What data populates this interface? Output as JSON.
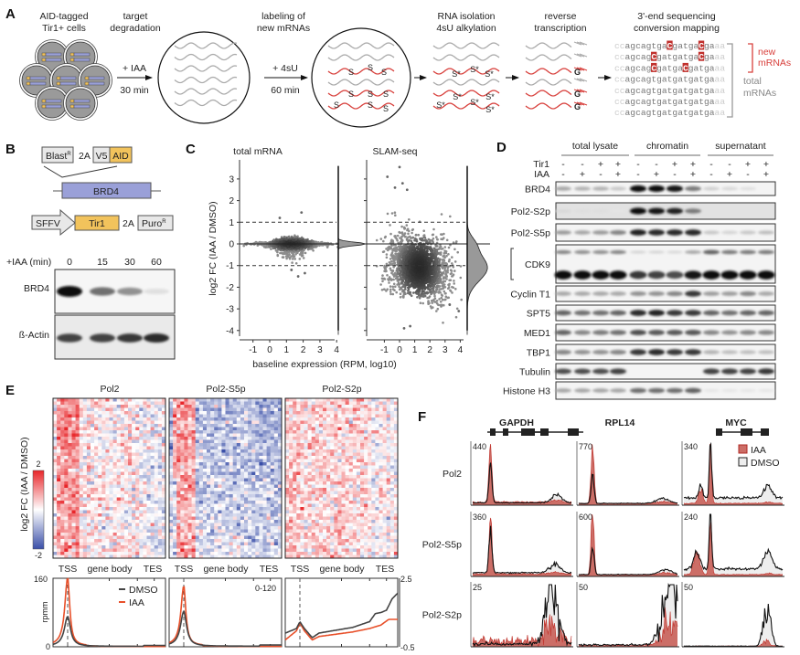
{
  "panel_labels": {
    "a": "A",
    "b": "B",
    "c": "C",
    "d": "D",
    "e": "E",
    "f": "F"
  },
  "a": {
    "step1": [
      "AID-tagged",
      "Tir1+ cells"
    ],
    "step2": [
      "target",
      "degradation"
    ],
    "arrow1": [
      "+ IAA",
      "30 min"
    ],
    "step3": [
      "labeling of",
      "new mRNAs"
    ],
    "arrow2": [
      "+ 4sU",
      "60 min"
    ],
    "step4": [
      "RNA isolation",
      "4sU alkylation"
    ],
    "step5": [
      "reverse",
      "transcription"
    ],
    "step6": [
      "3'-end sequencing",
      "conversion mapping"
    ],
    "thiol_label": "S",
    "alkylated_label": "S*",
    "g_label": "G",
    "sequences": [
      {
        "seq": "ccagcagtgaCgatgaCgaaa",
        "conversions": [
          10,
          16
        ]
      },
      {
        "seq": "ccagcagCgatgatgaCgaaa",
        "conversions": [
          7,
          16
        ]
      },
      {
        "seq": "ccagcagCgatgaCgatgaaa",
        "conversions": [
          7,
          13
        ]
      },
      {
        "seq": "ccagcagtgatgatgatgaaa",
        "conversions": []
      },
      {
        "seq": "ccagcagtgatgatgatgaaa",
        "conversions": []
      },
      {
        "seq": "ccagcagtgatgatgatgaaa",
        "conversions": []
      },
      {
        "seq": "ccagcagtgatgatgatgaaa",
        "conversions": []
      }
    ],
    "new_label": [
      "new",
      "mRNAs"
    ],
    "total_label": [
      "total",
      "mRNAs"
    ],
    "colors": {
      "new": "#d8403c",
      "total": "#999999",
      "aid": "#f2c35c",
      "brd4": "#9aa0d8"
    }
  },
  "b": {
    "construct1": {
      "blast": "Blast",
      "blast_sup": "R",
      "t2a": "2A",
      "v5": "V5",
      "aid": "AID"
    },
    "gene": "BRD4",
    "construct2": {
      "promoter": "SFFV",
      "tir1": "Tir1",
      "t2a": "2A",
      "puro": "Puro",
      "puro_sup": "R"
    },
    "blot": {
      "time_label": "+IAA (min)",
      "times": [
        "0",
        "15",
        "30",
        "60"
      ],
      "rows": [
        {
          "label": "BRD4",
          "intensity": [
            1.0,
            0.55,
            0.4,
            0.05
          ]
        },
        {
          "label": "ß-Actin",
          "intensity": [
            0.75,
            0.75,
            0.8,
            0.85
          ]
        }
      ]
    }
  },
  "chart_data": [
    {
      "panel": "C",
      "type": "scatter",
      "titles": [
        "total mRNA",
        "SLAM-seq"
      ],
      "xlabel": "baseline expression (RPM, log10)",
      "ylabel": "log2 FC (IAA / DMSO)",
      "xticks": [
        "-1",
        "0",
        "1",
        "2",
        "3",
        "4"
      ],
      "yticks": [
        "3",
        "2",
        "1",
        "0",
        "-1",
        "-2",
        "-3",
        "-4"
      ],
      "xlim": [
        -1.8,
        4.4
      ],
      "ylim": [
        -4.2,
        3.8
      ],
      "reference_lines": {
        "solid": [
          0
        ],
        "dashed": [
          1,
          -1
        ]
      },
      "series": [
        {
          "distribution": {
            "y_mode": 0.0,
            "y_spread": 0.08
          },
          "outliers": [
            [
              0.6,
              1.2
            ],
            [
              1.9,
              1.45
            ],
            [
              1.7,
              -1.5
            ],
            [
              2.1,
              -1.35
            ],
            [
              1.3,
              -1.2
            ]
          ]
        },
        {
          "distribution": {
            "y_mode": -1.1,
            "y_spread": 0.6
          },
          "outliers": [
            [
              0.0,
              3.55
            ],
            [
              -0.8,
              3.1
            ],
            [
              -0.3,
              2.6
            ],
            [
              0.2,
              2.8
            ],
            [
              0.5,
              2.5
            ],
            [
              3.3,
              -2.8
            ],
            [
              3.9,
              -3.1
            ],
            [
              0.7,
              -3.8
            ],
            [
              0.3,
              -3.9
            ]
          ]
        }
      ],
      "grid": false
    },
    {
      "panel": "E",
      "type": "heatmap",
      "titles": [
        "Pol2",
        "Pol2-S5p",
        "Pol2-S2p"
      ],
      "colorbar": {
        "label": "log2 FC (IAA / DMSO)",
        "max": "2",
        "min": "-2",
        "colors": [
          "#3a4fa8",
          "#ffffff",
          "#e8262a"
        ]
      },
      "xlabels": [
        "TSS",
        "gene body",
        "TES"
      ]
    },
    {
      "panel": "E",
      "type": "line",
      "ylabel": "rpmm",
      "legend": [
        {
          "name": "DMSO",
          "color": "#444444"
        },
        {
          "name": "IAA",
          "color": "#e8502a"
        }
      ],
      "legend_position": "top-right",
      "plots": [
        {
          "ylim": [
            0,
            160
          ],
          "yticks": [
            "160",
            "0"
          ],
          "dmso_peak": 70,
          "iaa_peak": 160
        },
        {
          "range_label": "0-120",
          "ylim": [
            0,
            120
          ],
          "dmso_peak": 61,
          "iaa_peak": 105
        },
        {
          "ylim": [
            -0.5,
            2.5
          ],
          "yticks": [
            "2.5",
            "-0.5"
          ],
          "dmso": [
            [
              0,
              0.1
            ],
            [
              0.1,
              0.3
            ],
            [
              0.13,
              0.6
            ],
            [
              0.17,
              0.3
            ],
            [
              0.24,
              -0.1
            ],
            [
              0.3,
              0.1
            ],
            [
              0.6,
              0.35
            ],
            [
              0.75,
              0.6
            ],
            [
              0.8,
              0.95
            ],
            [
              0.85,
              1.0
            ],
            [
              0.9,
              1.1
            ],
            [
              0.95,
              1.6
            ],
            [
              1,
              1.85
            ]
          ],
          "iaa": [
            [
              0,
              -0.2
            ],
            [
              0.1,
              0.2
            ],
            [
              0.13,
              0.55
            ],
            [
              0.17,
              0.2
            ],
            [
              0.24,
              -0.2
            ],
            [
              0.3,
              -0.05
            ],
            [
              0.6,
              0.15
            ],
            [
              0.75,
              0.3
            ],
            [
              0.85,
              0.45
            ],
            [
              0.92,
              0.7
            ],
            [
              1,
              0.7
            ]
          ]
        }
      ]
    },
    {
      "panel": "F",
      "type": "area",
      "genes": [
        "GAPDH",
        "RPL14",
        "MYC"
      ],
      "rows": [
        "Pol2",
        "Pol2-S5p",
        "Pol2-S2p"
      ],
      "scales": [
        [
          "440",
          "770",
          "340"
        ],
        [
          "360",
          "600",
          "240"
        ],
        [
          "25",
          "50",
          "50"
        ]
      ],
      "legend": [
        {
          "name": "IAA",
          "color": "#cc6e67"
        },
        {
          "name": "DMSO",
          "color": "#eeeeee"
        }
      ],
      "legend_position": "top-right"
    }
  ],
  "d": {
    "groups": [
      "total lysate",
      "chromatin",
      "supernatant"
    ],
    "tir1_label": "Tir1",
    "iaa_label": "IAA",
    "tir1": [
      "-",
      "-",
      "+",
      "+",
      "-",
      "-",
      "+",
      "+",
      "-",
      "-",
      "+",
      "+"
    ],
    "iaa": [
      "-",
      "+",
      "-",
      "+",
      "-",
      "+",
      "-",
      "+",
      "-",
      "+",
      "-",
      "+"
    ],
    "rows": [
      {
        "label": "BRD4",
        "intensity": [
          0.3,
          0.25,
          0.25,
          0.15,
          1,
          1,
          0.95,
          0.5,
          0.12,
          0.08,
          0.05,
          0
        ]
      },
      {
        "label": "Pol2-S2p",
        "intensity": [
          0.08,
          0.06,
          0.06,
          0.03,
          1,
          0.95,
          0.9,
          0.5,
          0,
          0,
          0,
          0
        ]
      },
      {
        "label": "Pol2-S5p",
        "intensity": [
          0.35,
          0.3,
          0.35,
          0.45,
          0.9,
          0.85,
          0.85,
          0.85,
          0.15,
          0.1,
          0.15,
          0.2
        ]
      },
      {
        "label": "CDK9",
        "intensity_upper": [
          0.45,
          0.4,
          0.4,
          0.45,
          0.1,
          0.1,
          0.08,
          0.3,
          0.6,
          0.5,
          0.5,
          0.5
        ],
        "intensity": [
          1,
          1,
          1,
          1,
          0.8,
          0.75,
          0.7,
          0.95,
          1,
          1,
          1,
          1
        ]
      },
      {
        "label": "Cyclin T1",
        "intensity": [
          0.3,
          0.3,
          0.3,
          0.3,
          0.4,
          0.4,
          0.45,
          0.8,
          0.35,
          0.35,
          0.45,
          0.3
        ]
      },
      {
        "label": "SPT5",
        "intensity": [
          0.6,
          0.55,
          0.55,
          0.6,
          0.85,
          0.9,
          0.8,
          0.8,
          0.6,
          0.55,
          0.6,
          0.6
        ]
      },
      {
        "label": "MED1",
        "intensity": [
          0.6,
          0.45,
          0.5,
          0.55,
          0.7,
          0.65,
          0.65,
          0.65,
          0.45,
          0.4,
          0.45,
          0.45
        ]
      },
      {
        "label": "TBP1",
        "intensity": [
          0.45,
          0.4,
          0.4,
          0.45,
          0.8,
          0.85,
          0.8,
          0.8,
          0.25,
          0.2,
          0.2,
          0.2
        ]
      },
      {
        "label": "Tubulin",
        "intensity": [
          0.7,
          0.7,
          0.7,
          0.75,
          0,
          0,
          0,
          0,
          0.75,
          0.75,
          0.75,
          0.8
        ]
      },
      {
        "label": "Histone H3",
        "intensity": [
          0.3,
          0.3,
          0.3,
          0.3,
          0.55,
          0.55,
          0.55,
          0.6,
          0.02,
          0.02,
          0.02,
          0.02
        ]
      }
    ]
  }
}
